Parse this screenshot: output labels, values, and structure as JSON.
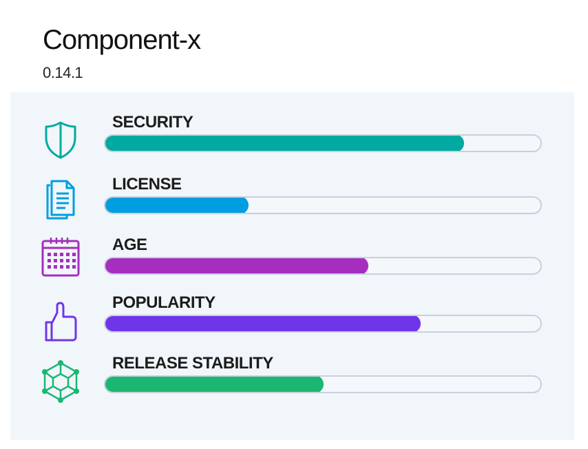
{
  "component": {
    "name": "Component-x",
    "version": "0.14.1"
  },
  "metrics": [
    {
      "label": "SECURITY",
      "icon": "shield-icon",
      "color": "#00aaa0",
      "value": 0.823
    },
    {
      "label": "LICENSE",
      "icon": "document-icon",
      "color": "#009ee0",
      "value": 0.33
    },
    {
      "label": "AGE",
      "icon": "calendar-icon",
      "color": "#a52ebf",
      "value": 0.603
    },
    {
      "label": "POPULARITY",
      "icon": "thumbs-up-icon",
      "color": "#6f35e8",
      "value": 0.723
    },
    {
      "label": "RELEASE STABILITY",
      "icon": "network-icon",
      "color": "#1bb672",
      "value": 0.502
    }
  ]
}
